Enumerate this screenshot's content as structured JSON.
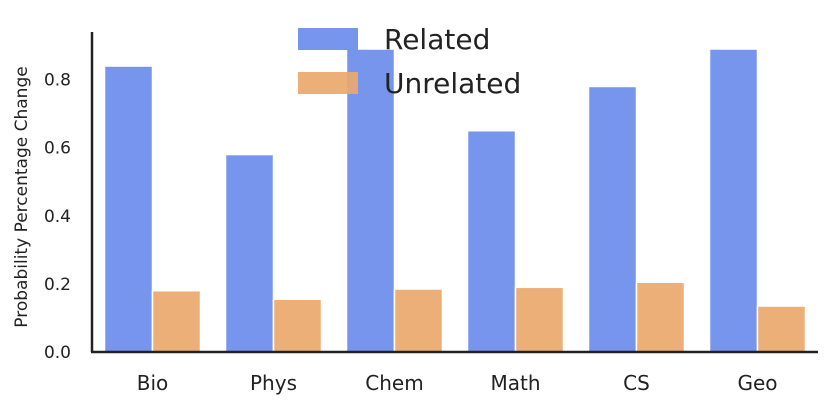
{
  "chart_data": {
    "type": "bar",
    "categories": [
      "Bio",
      "Phys",
      "Chem",
      "Math",
      "CS",
      "Geo"
    ],
    "series": [
      {
        "name": "Related",
        "values": [
          0.84,
          0.58,
          0.89,
          0.65,
          0.78,
          0.89
        ],
        "color": "#6b8ceb"
      },
      {
        "name": "Unrelated",
        "values": [
          0.18,
          0.155,
          0.185,
          0.19,
          0.205,
          0.135
        ],
        "color": "#eaa86c"
      }
    ],
    "xlabel": "",
    "ylabel": "Probability Percentage Change",
    "ylim": [
      0,
      0.94
    ],
    "yticks": [
      "0.0",
      "0.2",
      "0.4",
      "0.6",
      "0.8"
    ],
    "ytick_values": [
      0,
      0.2,
      0.4,
      0.6,
      0.8
    ],
    "grid": false,
    "legend": "top-center"
  }
}
